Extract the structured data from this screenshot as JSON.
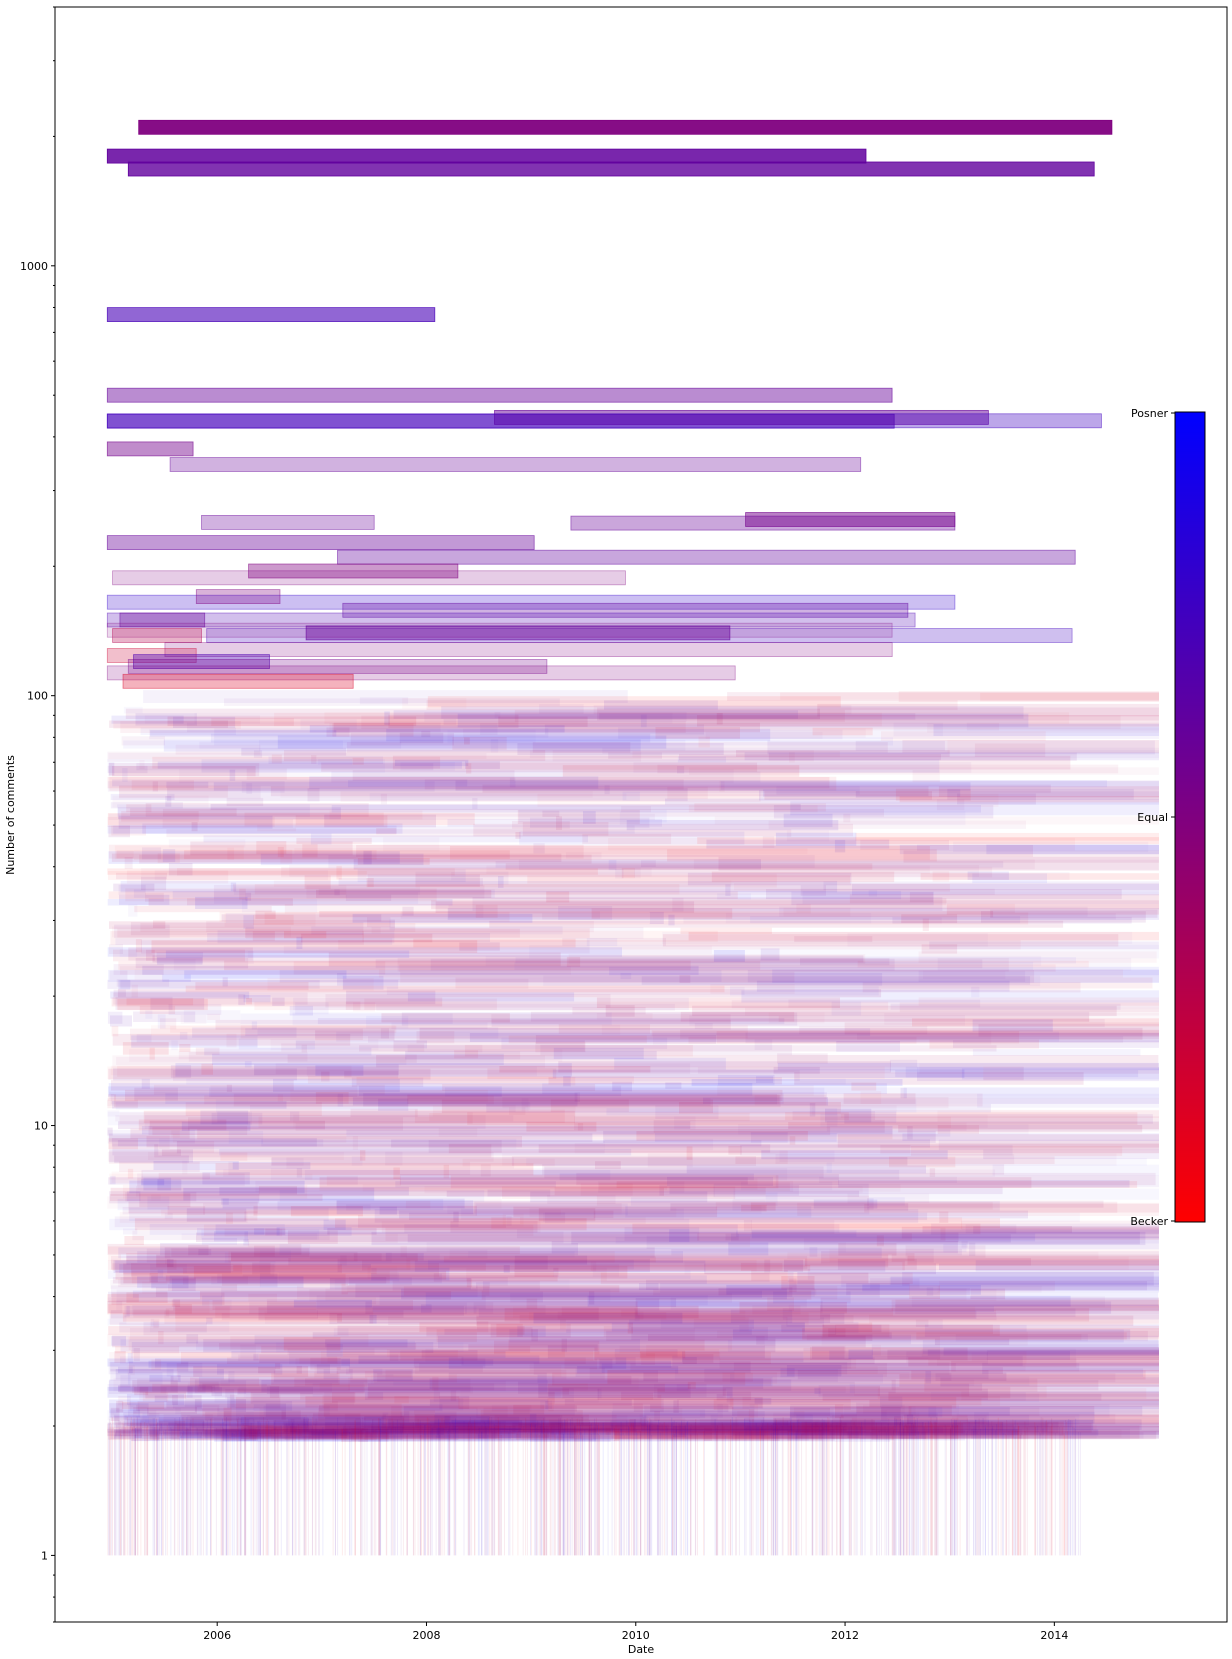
{
  "chart_data": {
    "type": "bar",
    "orientation": "horizontal-spans",
    "title": "",
    "xlabel": "Date",
    "ylabel": "Number of comments",
    "yscale": "log",
    "xlim": [
      2004.45,
      2015.65
    ],
    "ylim": [
      0.7,
      4000
    ],
    "x_ticks": [
      "2006",
      "2008",
      "2010",
      "2012",
      "2014"
    ],
    "y_ticks": [
      "1",
      "10",
      "100",
      "1000"
    ],
    "grid": false,
    "colorbar": {
      "low_label": "Becker",
      "mid_label": "Equal",
      "high_label": "Posner",
      "low_color": "#ff0000",
      "high_color": "#0000ff"
    },
    "highlighted_spans": [
      {
        "start": 2005.25,
        "end": 2014.55,
        "comments": 2100,
        "mix": 0.5,
        "alpha": 0.95
      },
      {
        "start": 2004.95,
        "end": 2012.2,
        "comments": 1800,
        "mix": 0.62,
        "alpha": 0.85
      },
      {
        "start": 2005.15,
        "end": 2014.38,
        "comments": 1680,
        "mix": 0.62,
        "alpha": 0.8
      },
      {
        "start": 2004.95,
        "end": 2008.08,
        "comments": 770,
        "mix": 0.72,
        "alpha": 0.6
      },
      {
        "start": 2004.95,
        "end": 2012.45,
        "comments": 500,
        "mix": 0.6,
        "alpha": 0.45
      },
      {
        "start": 2004.95,
        "end": 2012.47,
        "comments": 435,
        "mix": 0.72,
        "alpha": 0.5
      },
      {
        "start": 2008.65,
        "end": 2013.37,
        "comments": 444,
        "mix": 0.6,
        "alpha": 0.5
      },
      {
        "start": 2004.95,
        "end": 2014.45,
        "comments": 436,
        "mix": 0.75,
        "alpha": 0.35
      },
      {
        "start": 2004.95,
        "end": 2005.77,
        "comments": 375,
        "mix": 0.55,
        "alpha": 0.45
      },
      {
        "start": 2005.55,
        "end": 2012.15,
        "comments": 345,
        "mix": 0.6,
        "alpha": 0.3
      },
      {
        "start": 2005.85,
        "end": 2007.5,
        "comments": 253,
        "mix": 0.6,
        "alpha": 0.3
      },
      {
        "start": 2009.38,
        "end": 2013.05,
        "comments": 252,
        "mix": 0.6,
        "alpha": 0.35
      },
      {
        "start": 2011.05,
        "end": 2013.05,
        "comments": 257,
        "mix": 0.55,
        "alpha": 0.5
      },
      {
        "start": 2004.95,
        "end": 2009.03,
        "comments": 227,
        "mix": 0.6,
        "alpha": 0.4
      },
      {
        "start": 2007.15,
        "end": 2014.2,
        "comments": 210,
        "mix": 0.62,
        "alpha": 0.35
      },
      {
        "start": 2006.3,
        "end": 2008.3,
        "comments": 195,
        "mix": 0.5,
        "alpha": 0.4
      },
      {
        "start": 2005.0,
        "end": 2009.9,
        "comments": 188,
        "mix": 0.5,
        "alpha": 0.2
      },
      {
        "start": 2004.95,
        "end": 2013.05,
        "comments": 165,
        "mix": 0.8,
        "alpha": 0.25
      },
      {
        "start": 2005.8,
        "end": 2006.6,
        "comments": 170,
        "mix": 0.5,
        "alpha": 0.3
      },
      {
        "start": 2007.2,
        "end": 2012.6,
        "comments": 158,
        "mix": 0.62,
        "alpha": 0.3
      },
      {
        "start": 2004.95,
        "end": 2012.67,
        "comments": 150,
        "mix": 0.7,
        "alpha": 0.25
      },
      {
        "start": 2005.07,
        "end": 2005.88,
        "comments": 150,
        "mix": 0.6,
        "alpha": 0.35
      },
      {
        "start": 2005.9,
        "end": 2014.17,
        "comments": 138,
        "mix": 0.75,
        "alpha": 0.25
      },
      {
        "start": 2006.85,
        "end": 2010.9,
        "comments": 140,
        "mix": 0.62,
        "alpha": 0.45
      },
      {
        "start": 2004.95,
        "end": 2012.45,
        "comments": 142,
        "mix": 0.5,
        "alpha": 0.15
      },
      {
        "start": 2005.0,
        "end": 2005.85,
        "comments": 138,
        "mix": 0.3,
        "alpha": 0.3
      },
      {
        "start": 2005.5,
        "end": 2012.45,
        "comments": 128,
        "mix": 0.5,
        "alpha": 0.2
      },
      {
        "start": 2004.95,
        "end": 2005.8,
        "comments": 124,
        "mix": 0.2,
        "alpha": 0.25
      },
      {
        "start": 2005.2,
        "end": 2006.5,
        "comments": 120,
        "mix": 0.7,
        "alpha": 0.4
      },
      {
        "start": 2005.15,
        "end": 2009.15,
        "comments": 117,
        "mix": 0.55,
        "alpha": 0.25
      },
      {
        "start": 2004.95,
        "end": 2010.95,
        "comments": 113,
        "mix": 0.5,
        "alpha": 0.2
      },
      {
        "start": 2005.1,
        "end": 2007.3,
        "comments": 108,
        "mix": 0.15,
        "alpha": 0.3
      }
    ],
    "note_series": "Background: several thousand faint horizontal spans, one per poster, spanning 2005–2014 and 1–100 comments, coloured by Becker/Posner share."
  }
}
